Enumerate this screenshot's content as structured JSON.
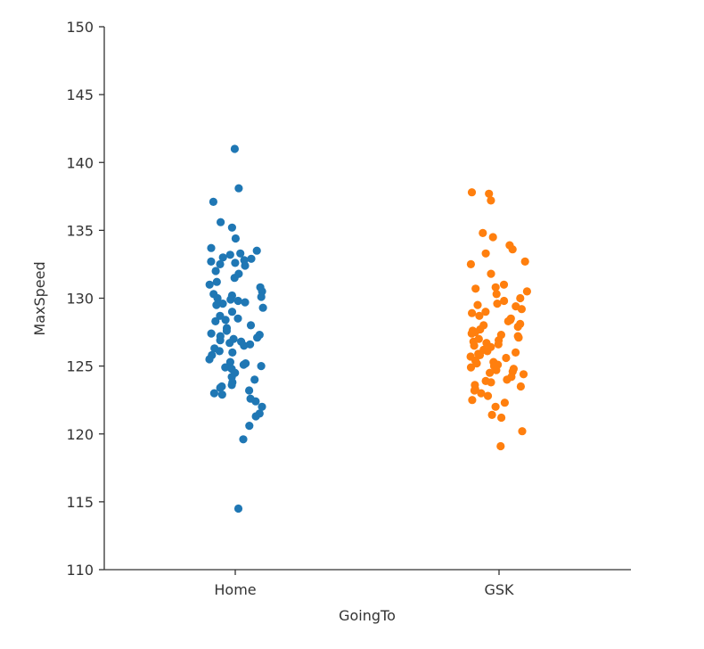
{
  "chart_data": {
    "type": "scatter",
    "subtype": "strip",
    "title": "",
    "xlabel": "GoingTo",
    "ylabel": "MaxSpeed",
    "ylim": [
      110,
      150
    ],
    "yticks": [
      "110",
      "115",
      "120",
      "125",
      "130",
      "135",
      "140",
      "145",
      "150"
    ],
    "categories": [
      "Home",
      "GSK"
    ],
    "grid": false,
    "legend": "none",
    "colors": [
      "#1f77b4",
      "#ff7f0e"
    ],
    "series": [
      {
        "category": "Home",
        "values": [
          141.0,
          138.1,
          137.1,
          135.6,
          135.2,
          134.4,
          133.7,
          133.5,
          133.3,
          133.2,
          133.0,
          132.9,
          132.8,
          132.7,
          132.6,
          132.5,
          132.4,
          132.0,
          131.8,
          131.5,
          131.2,
          131.0,
          130.8,
          130.5,
          130.3,
          130.2,
          130.1,
          130.0,
          129.9,
          129.8,
          129.7,
          129.6,
          129.5,
          129.3,
          129.0,
          128.7,
          128.5,
          128.4,
          128.3,
          128.0,
          127.8,
          127.6,
          127.4,
          127.3,
          127.2,
          127.1,
          127.0,
          126.9,
          126.8,
          126.7,
          126.6,
          126.5,
          126.3,
          126.1,
          126.0,
          125.8,
          125.5,
          125.3,
          125.2,
          125.1,
          125.0,
          124.9,
          124.8,
          124.5,
          124.2,
          124.0,
          123.8,
          123.6,
          123.5,
          123.4,
          123.2,
          123.0,
          122.9,
          122.6,
          122.4,
          122.0,
          121.5,
          121.3,
          120.6,
          119.6,
          114.5
        ]
      },
      {
        "category": "GSK",
        "values": [
          137.8,
          137.7,
          137.2,
          134.8,
          134.5,
          133.9,
          133.6,
          133.3,
          132.7,
          132.5,
          131.8,
          131.0,
          130.8,
          130.7,
          130.5,
          130.3,
          130.0,
          129.8,
          129.6,
          129.5,
          129.4,
          129.2,
          129.0,
          128.9,
          128.7,
          128.5,
          128.4,
          128.3,
          128.1,
          128.0,
          127.9,
          127.7,
          127.6,
          127.5,
          127.4,
          127.3,
          127.2,
          127.1,
          127.0,
          126.9,
          126.8,
          126.7,
          126.6,
          126.5,
          126.4,
          126.2,
          126.1,
          126.0,
          125.9,
          125.8,
          125.7,
          125.6,
          125.4,
          125.3,
          125.2,
          125.1,
          125.0,
          124.9,
          124.8,
          124.7,
          124.6,
          124.5,
          124.4,
          124.2,
          124.0,
          123.9,
          123.8,
          123.6,
          123.5,
          123.3,
          123.2,
          123.0,
          122.8,
          122.5,
          122.3,
          122.0,
          121.4,
          121.2,
          120.2,
          119.1
        ]
      }
    ]
  }
}
